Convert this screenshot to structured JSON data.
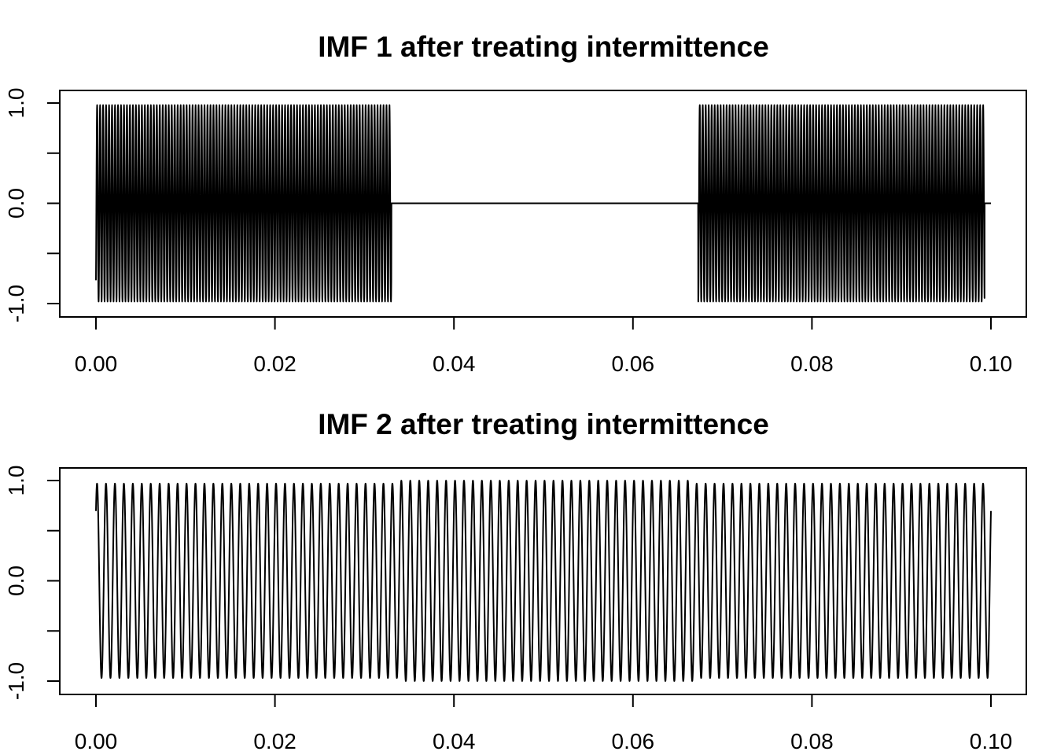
{
  "chart_data": [
    {
      "type": "line",
      "title": "IMF 1 after treating intermittence",
      "xlabel": "",
      "ylabel": "",
      "xlim": [
        0.0,
        0.1
      ],
      "ylim": [
        -1.0,
        1.0
      ],
      "x_ticks": [
        0.0,
        0.02,
        0.04,
        0.06,
        0.08,
        0.1
      ],
      "x_tick_labels": [
        "0.00",
        "0.02",
        "0.04",
        "0.06",
        "0.08",
        "0.10"
      ],
      "y_ticks": [
        -1.0,
        -0.5,
        0.0,
        0.5,
        1.0
      ],
      "y_tick_labels": [
        "-1.0",
        "",
        "0.0",
        "",
        "1.0"
      ],
      "grid": false,
      "line_color": "#000000",
      "series": [
        {
          "frequency_hz": 3000,
          "amplitude": 0.98,
          "active_intervals": [
            [
              0.0,
              0.033
            ],
            [
              0.0673,
              0.0993
            ]
          ],
          "x_end": 0.1,
          "zero_outside_intervals": true
        }
      ]
    },
    {
      "type": "line",
      "title": "IMF 2 after treating intermittence",
      "xlabel": "",
      "ylabel": "",
      "xlim": [
        0.0,
        0.1
      ],
      "ylim": [
        -1.0,
        1.0
      ],
      "x_ticks": [
        0.0,
        0.02,
        0.04,
        0.06,
        0.08,
        0.1
      ],
      "x_tick_labels": [
        "0.00",
        "0.02",
        "0.04",
        "0.06",
        "0.08",
        "0.10"
      ],
      "y_ticks": [
        -1.0,
        -0.5,
        0.0,
        0.5,
        1.0
      ],
      "y_tick_labels": [
        "-1.0",
        "",
        "0.0",
        "",
        "1.0"
      ],
      "grid": false,
      "line_color": "#000000",
      "series": [
        {
          "frequency_hz": 1000,
          "amplitude": 0.97,
          "amplitude_middle": 1.0,
          "middle_interval": [
            0.034,
            0.067
          ],
          "active_intervals": [
            [
              0.0,
              0.1
            ]
          ],
          "x_end": 0.1,
          "zero_outside_intervals": false
        }
      ]
    }
  ]
}
